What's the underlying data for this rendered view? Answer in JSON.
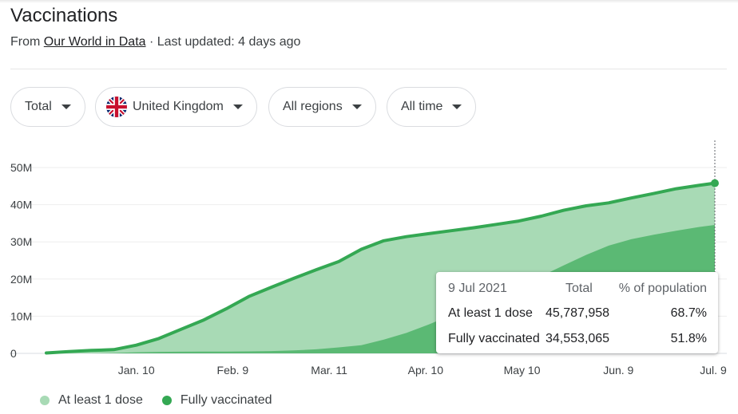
{
  "header": {
    "title": "Vaccinations",
    "source_prefix": "From ",
    "source_link": "Our World in Data",
    "updated": " · Last updated: 4 days ago"
  },
  "filters": [
    {
      "label": "Total"
    },
    {
      "label": "United Kingdom",
      "icon": "uk-flag-icon"
    },
    {
      "label": "All regions"
    },
    {
      "label": "All time"
    }
  ],
  "colors": {
    "at_least_one": "#a8dab5",
    "fully": "#5bb974",
    "line": "#34a853",
    "grid": "#eeeeee"
  },
  "chart_data": {
    "type": "area",
    "y_unit": "people",
    "ylim": [
      0,
      50000000
    ],
    "yticks": [
      {
        "value": 0,
        "label": "0"
      },
      {
        "value": 10000000,
        "label": "10M"
      },
      {
        "value": 20000000,
        "label": "20M"
      },
      {
        "value": 30000000,
        "label": "30M"
      },
      {
        "value": 40000000,
        "label": "40M"
      },
      {
        "value": 50000000,
        "label": "50M"
      }
    ],
    "xlim": [
      "2020-12-13",
      "2021-07-09"
    ],
    "xticks": [
      {
        "date": "2021-01-10",
        "label": "Jan. 10"
      },
      {
        "date": "2021-02-09",
        "label": "Feb. 9"
      },
      {
        "date": "2021-03-11",
        "label": "Mar. 11"
      },
      {
        "date": "2021-04-10",
        "label": "Apr. 10"
      },
      {
        "date": "2021-05-10",
        "label": "May 10"
      },
      {
        "date": "2021-06-09",
        "label": "Jun. 9"
      },
      {
        "date": "2021-07-09",
        "label": "Jul. 9"
      }
    ],
    "series": [
      {
        "name": "At least 1 dose",
        "points": [
          [
            "2020-12-13",
            100000
          ],
          [
            "2020-12-20",
            500000
          ],
          [
            "2020-12-27",
            800000
          ],
          [
            "2021-01-03",
            1000000
          ],
          [
            "2021-01-10",
            2200000
          ],
          [
            "2021-01-17",
            4000000
          ],
          [
            "2021-01-24",
            6500000
          ],
          [
            "2021-01-31",
            9000000
          ],
          [
            "2021-02-07",
            12000000
          ],
          [
            "2021-02-14",
            15300000
          ],
          [
            "2021-02-21",
            17800000
          ],
          [
            "2021-02-28",
            20200000
          ],
          [
            "2021-03-07",
            22500000
          ],
          [
            "2021-03-14",
            24700000
          ],
          [
            "2021-03-21",
            28000000
          ],
          [
            "2021-03-28",
            30300000
          ],
          [
            "2021-04-04",
            31400000
          ],
          [
            "2021-04-11",
            32200000
          ],
          [
            "2021-04-18",
            33000000
          ],
          [
            "2021-04-25",
            33800000
          ],
          [
            "2021-05-02",
            34700000
          ],
          [
            "2021-05-09",
            35600000
          ],
          [
            "2021-05-16",
            36900000
          ],
          [
            "2021-05-23",
            38500000
          ],
          [
            "2021-05-30",
            39700000
          ],
          [
            "2021-06-06",
            40500000
          ],
          [
            "2021-06-13",
            41800000
          ],
          [
            "2021-06-20",
            43000000
          ],
          [
            "2021-06-27",
            44300000
          ],
          [
            "2021-07-04",
            45200000
          ],
          [
            "2021-07-09",
            45787958
          ]
        ]
      },
      {
        "name": "Fully vaccinated",
        "points": [
          [
            "2020-12-13",
            0
          ],
          [
            "2020-12-20",
            0
          ],
          [
            "2020-12-27",
            0
          ],
          [
            "2021-01-03",
            100000
          ],
          [
            "2021-01-10",
            300000
          ],
          [
            "2021-01-17",
            400000
          ],
          [
            "2021-01-24",
            450000
          ],
          [
            "2021-01-31",
            480000
          ],
          [
            "2021-02-07",
            500000
          ],
          [
            "2021-02-14",
            540000
          ],
          [
            "2021-02-21",
            620000
          ],
          [
            "2021-02-28",
            800000
          ],
          [
            "2021-03-07",
            1100000
          ],
          [
            "2021-03-14",
            1600000
          ],
          [
            "2021-03-21",
            2200000
          ],
          [
            "2021-03-28",
            3700000
          ],
          [
            "2021-04-04",
            5500000
          ],
          [
            "2021-04-11",
            7800000
          ],
          [
            "2021-04-18",
            10300000
          ],
          [
            "2021-04-25",
            12800000
          ],
          [
            "2021-05-02",
            15000000
          ],
          [
            "2021-05-09",
            17800000
          ],
          [
            "2021-05-16",
            20800000
          ],
          [
            "2021-05-23",
            23700000
          ],
          [
            "2021-05-30",
            26500000
          ],
          [
            "2021-06-06",
            29000000
          ],
          [
            "2021-06-13",
            30700000
          ],
          [
            "2021-06-20",
            31900000
          ],
          [
            "2021-06-27",
            33000000
          ],
          [
            "2021-07-04",
            34000000
          ],
          [
            "2021-07-09",
            34553065
          ]
        ]
      }
    ],
    "legend_position": "bottom-left",
    "grid": true
  },
  "tooltip": {
    "date": "9 Jul 2021",
    "col_total": "Total",
    "col_pct": "% of population",
    "rows": [
      {
        "label": "At least 1 dose",
        "total": "45,787,958",
        "pct": "68.7%"
      },
      {
        "label": "Fully vaccinated",
        "total": "34,553,065",
        "pct": "51.8%"
      }
    ]
  },
  "legend": {
    "items": [
      {
        "label": "At least 1 dose",
        "color": "#a8dab5"
      },
      {
        "label": "Fully vaccinated",
        "color": "#34a853"
      }
    ]
  }
}
